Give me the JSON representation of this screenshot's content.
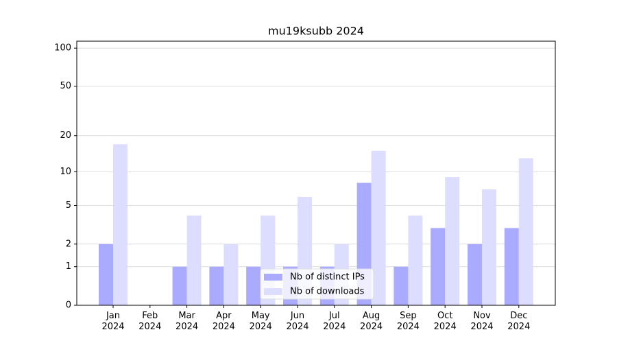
{
  "chart_data": {
    "type": "bar",
    "title": "mu19ksubb 2024",
    "categories": [
      "Jan\n2024",
      "Feb\n2024",
      "Mar\n2024",
      "Apr\n2024",
      "May\n2024",
      "Jun\n2024",
      "Jul\n2024",
      "Aug\n2024",
      "Sep\n2024",
      "Oct\n2024",
      "Nov\n2024",
      "Dec\n2024"
    ],
    "series": [
      {
        "name": "Nb of distinct IPs",
        "color": "#aaaaff",
        "values": [
          2,
          0,
          1,
          1,
          1,
          1,
          1,
          8,
          1,
          3,
          2,
          3
        ]
      },
      {
        "name": "Nb of downloads",
        "color": "#ddddff",
        "values": [
          17,
          0,
          4,
          2,
          4,
          6,
          2,
          15,
          4,
          9,
          7,
          13
        ]
      }
    ],
    "yscale": "log1p",
    "ylim": [
      0,
      113.5
    ],
    "yticks": [
      0,
      1,
      2,
      5,
      10,
      20,
      50,
      100
    ],
    "grid": true,
    "legend": "lower center"
  }
}
